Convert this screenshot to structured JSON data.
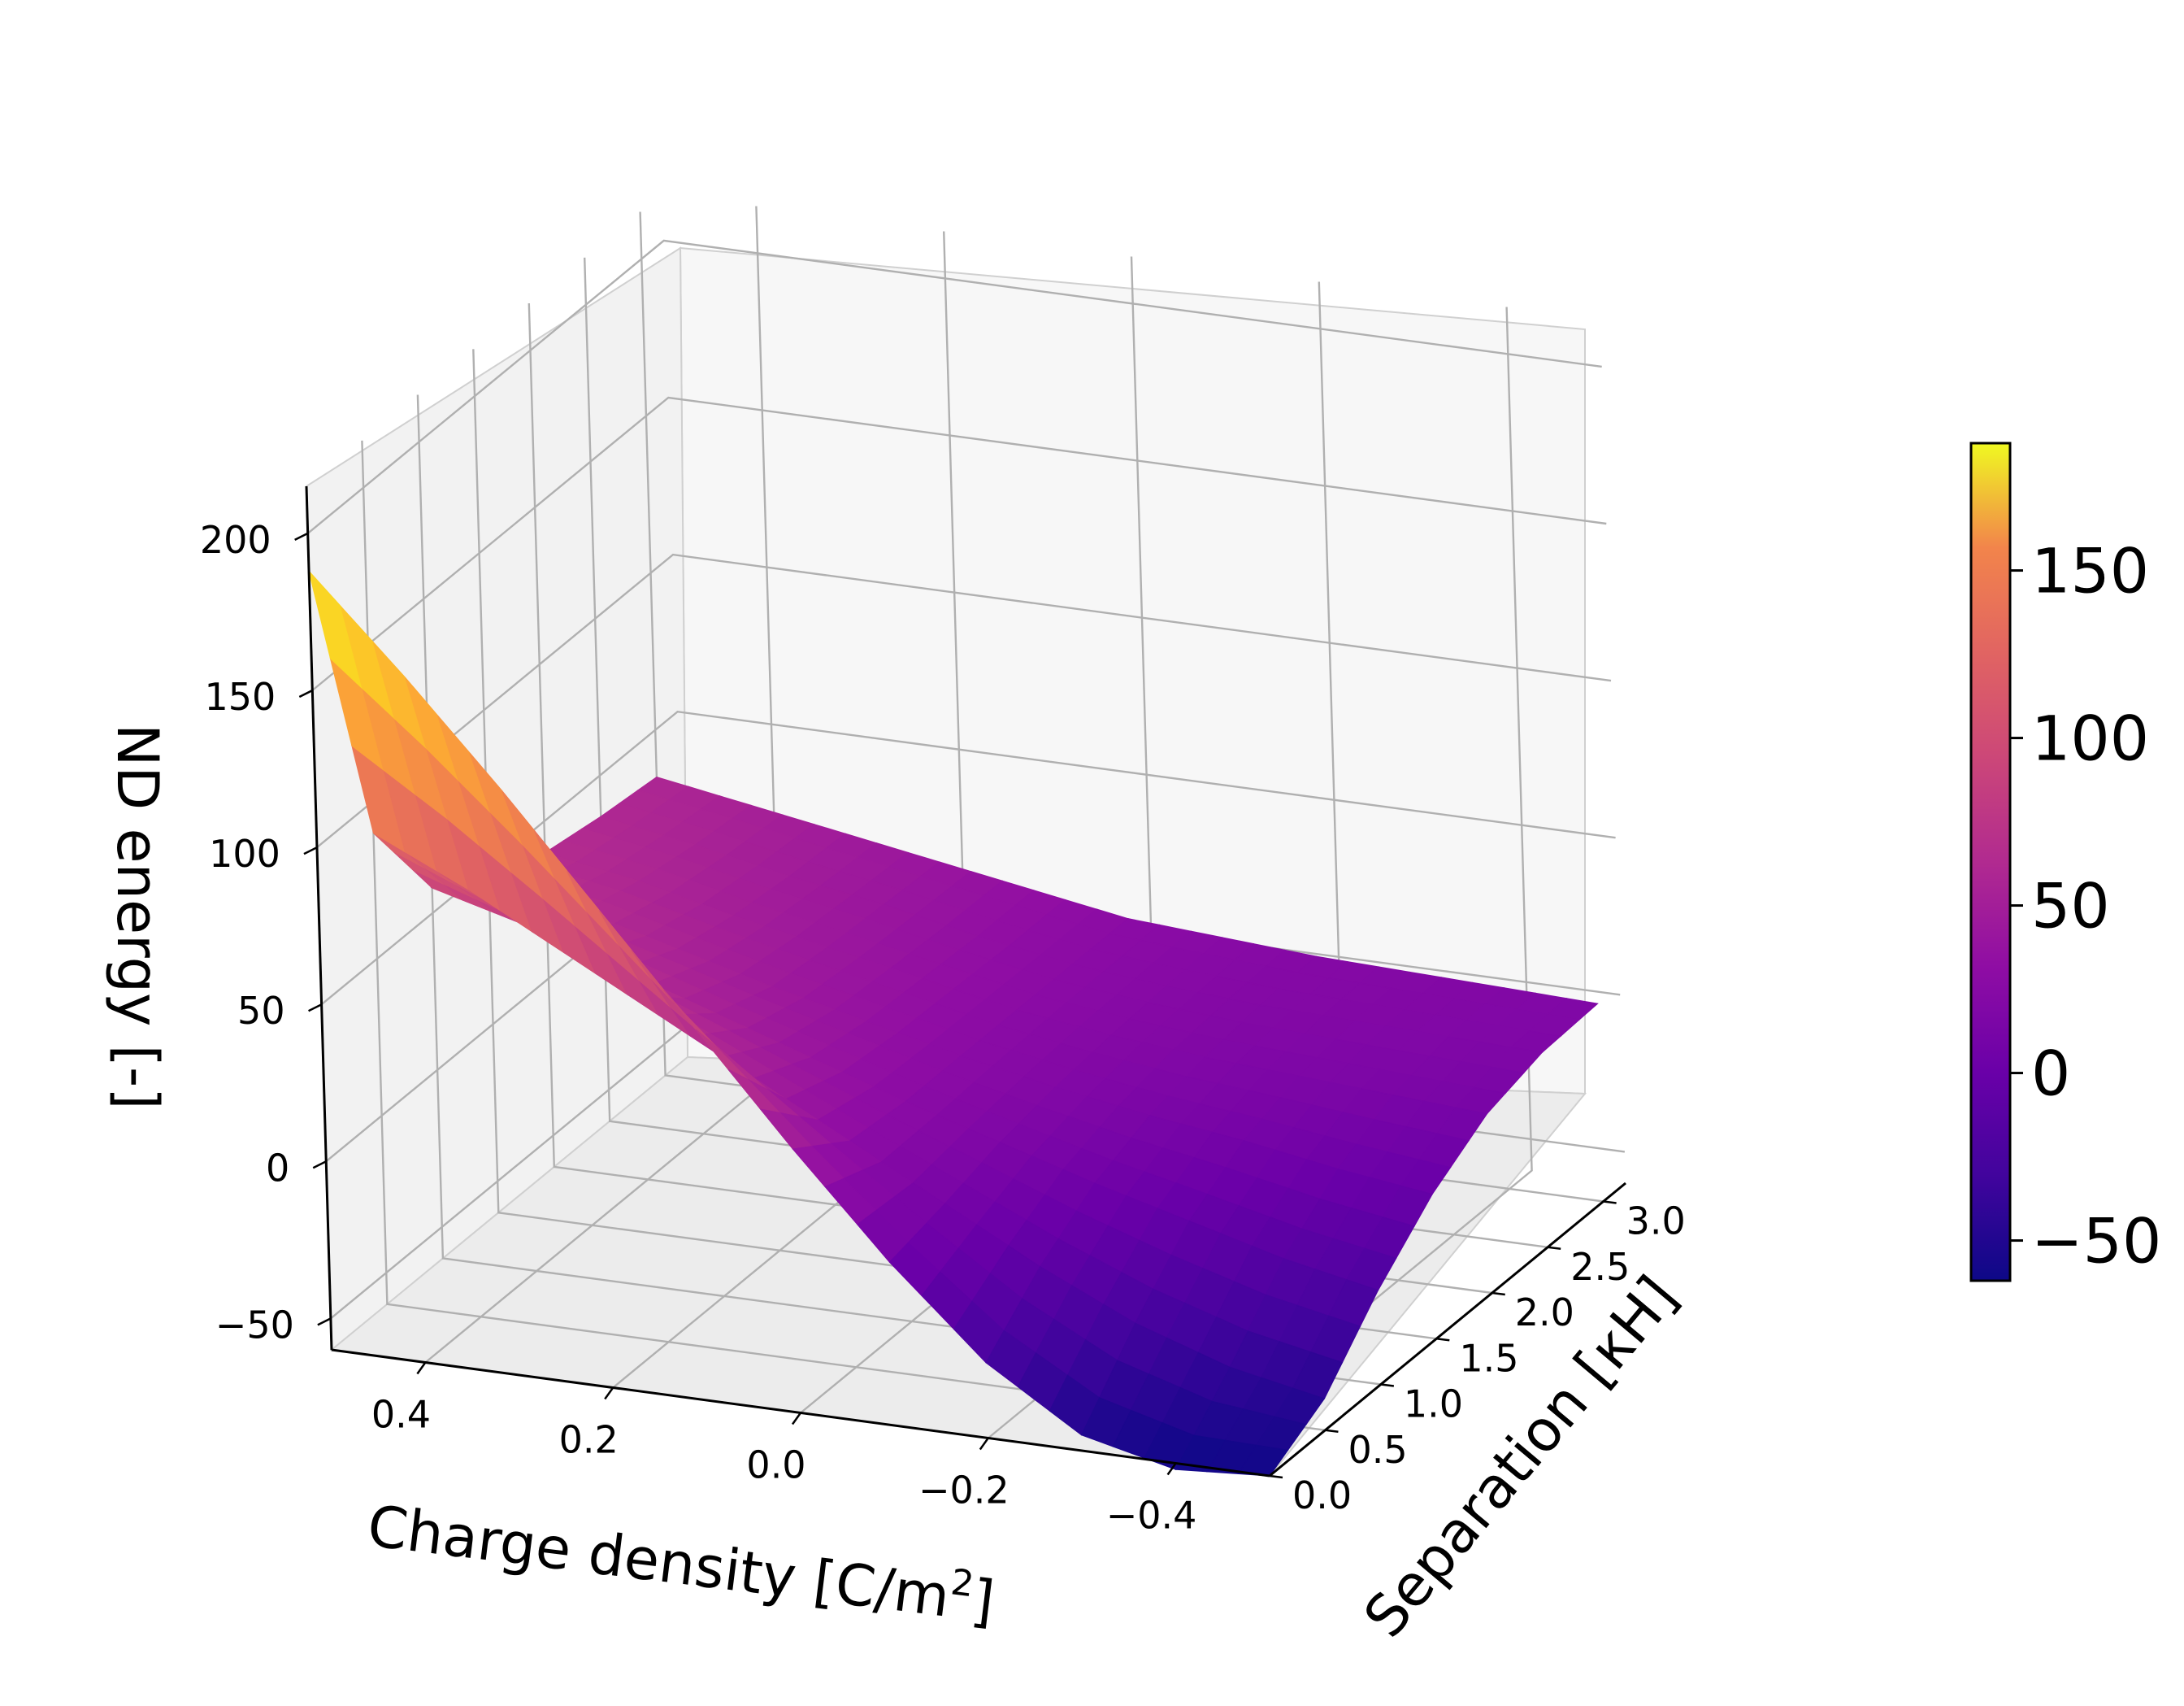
{
  "chart_data": {
    "type": "surface3d",
    "colormap": "plasma",
    "x_axis": {
      "label": "Charge density [C/m²]",
      "label_main": "Charge density [C/m",
      "label_sup": "2",
      "label_end": "]",
      "ticks": [
        0.4,
        0.2,
        0.0,
        -0.2,
        -0.4
      ],
      "tick_labels": [
        "0.4",
        "0.2",
        "0.0",
        "−0.2",
        "−0.4"
      ],
      "range": [
        0.5,
        -0.5
      ]
    },
    "y_axis": {
      "label": "Separation [κH]",
      "ticks": [
        0.0,
        0.5,
        1.0,
        1.5,
        2.0,
        2.5,
        3.0
      ],
      "tick_labels": [
        "0.0",
        "0.5",
        "1.0",
        "1.5",
        "2.0",
        "2.5",
        "3.0"
      ],
      "range": [
        0.0,
        3.2
      ]
    },
    "z_axis": {
      "label": "ND energy [-]",
      "ticks": [
        -50,
        0,
        50,
        100,
        150,
        200
      ],
      "tick_labels": [
        "−50",
        "0",
        "50",
        "100",
        "150",
        "200"
      ],
      "range": [
        -60,
        215
      ]
    },
    "colorbar": {
      "ticks": [
        -50,
        0,
        50,
        100,
        150
      ],
      "tick_labels": [
        "−50",
        "0",
        "50",
        "100",
        "150"
      ],
      "range": [
        -62,
        188
      ]
    },
    "grid": true,
    "surface": {
      "charge_density": [
        0.5,
        0.4,
        0.3,
        0.2,
        0.1,
        0.0,
        -0.1,
        -0.2,
        -0.3,
        -0.4,
        -0.5
      ],
      "separation": [
        0.0,
        0.5,
        1.0,
        1.5,
        2.0,
        2.5,
        3.0
      ],
      "nd_energy": [
        [
          188,
          90,
          58,
          46,
          40,
          37,
          35
        ],
        [
          158,
          76,
          50,
          40,
          35,
          32,
          30
        ],
        [
          126,
          60,
          40,
          32,
          28,
          26,
          25
        ],
        [
          92,
          44,
          30,
          24,
          22,
          21,
          20
        ],
        [
          58,
          28,
          20,
          17,
          16,
          15,
          15
        ],
        [
          24,
          12,
          10,
          10,
          10,
          10,
          10
        ],
        [
          -8,
          -4,
          1,
          4,
          6,
          7,
          8
        ],
        [
          -36,
          -20,
          -8,
          -1,
          3,
          5,
          6
        ],
        [
          -55,
          -34,
          -16,
          -5,
          1,
          4,
          5
        ],
        [
          -62,
          -44,
          -24,
          -10,
          -1,
          3,
          4
        ],
        [
          -60,
          -50,
          -30,
          -14,
          -3,
          2,
          3
        ]
      ]
    }
  }
}
